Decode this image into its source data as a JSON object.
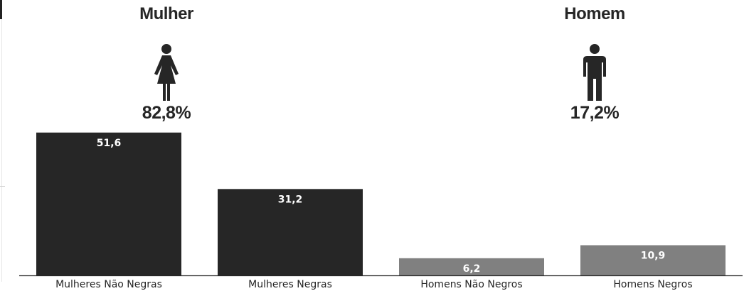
{
  "header": {
    "female": {
      "title": "Mulher",
      "percent": "82,8%",
      "icon": "woman-icon"
    },
    "male": {
      "title": "Homem",
      "percent": "17,2%",
      "icon": "man-icon"
    }
  },
  "chart_data": {
    "type": "bar",
    "categories": [
      "Mulheres Não Negras",
      "Mulheres Negras",
      "Homens Não Negros",
      "Homens Negros"
    ],
    "values": [
      51.6,
      31.2,
      6.2,
      10.9
    ],
    "value_labels": [
      "51,6",
      "31,2",
      "6,2",
      "10,9"
    ],
    "bar_colors": [
      "#262626",
      "#262626",
      "#808080",
      "#808080"
    ],
    "value_label_color": "#ffffff",
    "title": "",
    "xlabel": "",
    "ylabel": "",
    "ylim": [
      0,
      60
    ],
    "grid": false,
    "legend": "none"
  }
}
